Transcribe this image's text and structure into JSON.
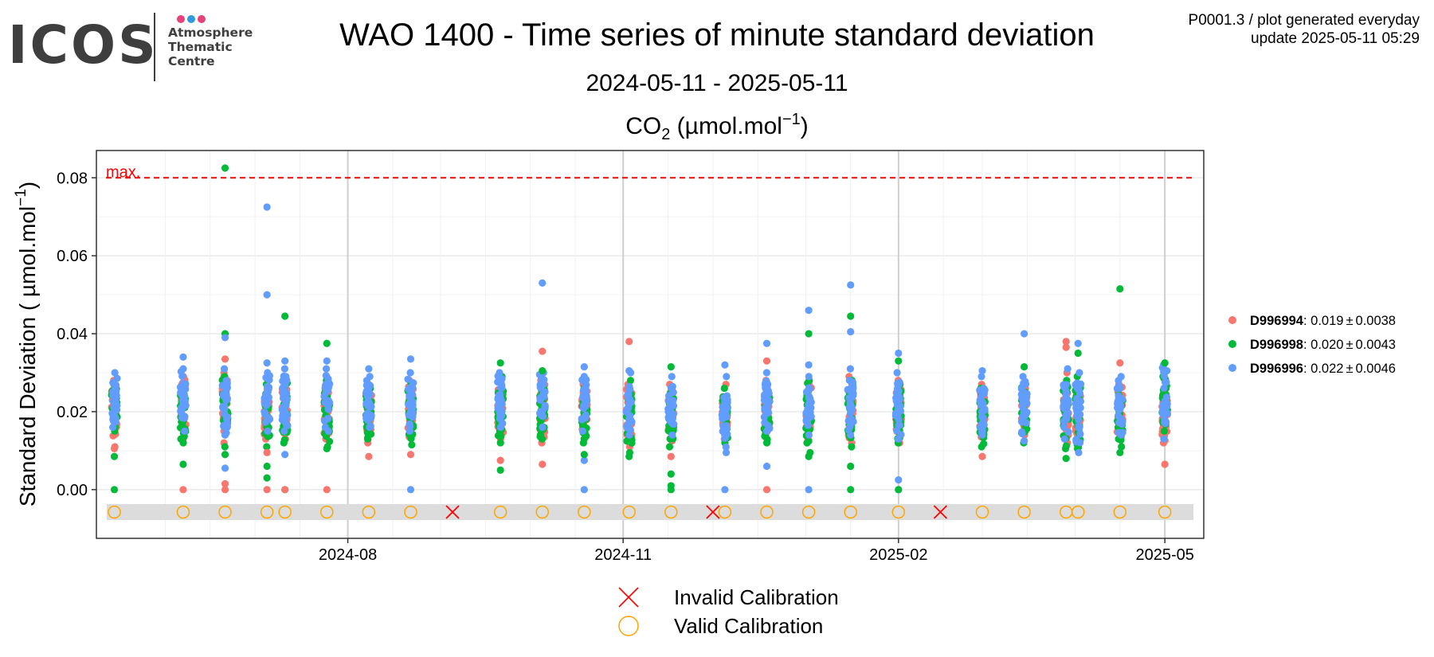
{
  "logo": {
    "word": "ICOS",
    "lines": [
      "Atmosphere",
      "Thematic",
      "Centre"
    ],
    "dot_colors": [
      "#e8417a",
      "#2d9be0",
      "#e8417a"
    ]
  },
  "header": {
    "title": "WAO 1400 - Time series of minute standard deviation",
    "subtitle": "2024-05-11 - 2025-05-11",
    "meta_line1": "P0001.3 / plot generated everyday",
    "meta_line2": "update  2025-05-11 05:29"
  },
  "colors": {
    "D996994": "#f8766d",
    "D996998": "#00ba38",
    "D996996": "#619cff",
    "max_line": "#ff0000",
    "calibration_band": "#dcdcdc",
    "valid_calibration": "#ffa500",
    "invalid_calibration": "#ff0000"
  },
  "chart_data": {
    "type": "scatter",
    "title": "CO2 (µmol.mol-1)",
    "ylabel": "Standard Deviation ( µmol.mol-1)",
    "xlim": [
      "2024-05-09",
      "2025-05-14"
    ],
    "ylim": [
      -0.0125,
      0.087
    ],
    "yticks": [
      0.0,
      0.02,
      0.04,
      0.06,
      0.08
    ],
    "ytick_labels": [
      "0.00",
      "0.02",
      "0.04",
      "0.06",
      "0.08"
    ],
    "xticks": [
      "2024-08-01",
      "2024-11-01",
      "2025-02-01",
      "2025-05-01"
    ],
    "xtick_labels": [
      "2024-08",
      "2024-11",
      "2025-02",
      "2025-05"
    ],
    "grid": true,
    "legend_position": "right",
    "max_line": {
      "value": 0.08,
      "label": "max."
    },
    "series": [
      {
        "name": "D996994",
        "legend_value": ": 0.019",
        "legend_sd": "0.0038"
      },
      {
        "name": "D996998",
        "legend_value": ": 0.020",
        "legend_sd": "0.0043"
      },
      {
        "name": "D996996",
        "legend_value": ": 0.022",
        "legend_sd": "0.0046"
      }
    ],
    "measurements": [
      {
        "date": "2024-05-15",
        "D996994": [
          0.011,
          0.028
        ],
        "D996998": [
          0.015,
          0.027
        ],
        "D996996": [
          0.016,
          0.03
        ],
        "low_points": {
          "D996998": [
            0.0,
            0.0085
          ],
          "D996994": [
            0.0105
          ]
        },
        "high_points": {}
      },
      {
        "date": "2024-06-07",
        "D996994": [
          0.0135,
          0.029
        ],
        "D996998": [
          0.012,
          0.027
        ],
        "D996996": [
          0.015,
          0.031
        ],
        "low_points": {
          "D996994": [
            0.0
          ],
          "D996998": [
            0.0065
          ]
        },
        "high_points": {
          "D996996": [
            0.034
          ]
        }
      },
      {
        "date": "2024-06-21",
        "D996994": [
          0.012,
          0.03
        ],
        "D996998": [
          0.011,
          0.029
        ],
        "D996996": [
          0.014,
          0.031
        ],
        "low_points": {
          "D996994": [
            0.0,
            0.0015
          ],
          "D996998": [
            0.009
          ],
          "D996996": [
            0.0055
          ]
        },
        "high_points": {
          "D996998": [
            0.0825,
            0.04
          ],
          "D996994": [
            0.0335
          ],
          "D996996": [
            0.039
          ]
        }
      },
      {
        "date": "2024-07-05",
        "D996994": [
          0.013,
          0.028
        ],
        "D996998": [
          0.011,
          0.027
        ],
        "D996996": [
          0.015,
          0.03
        ],
        "low_points": {
          "D996994": [
            0.0,
            0.0095
          ],
          "D996998": [
            0.003,
            0.006
          ]
        },
        "high_points": {
          "D996996": [
            0.0725,
            0.05,
            0.0325
          ]
        }
      },
      {
        "date": "2024-07-11",
        "D996994": [
          0.013,
          0.029
        ],
        "D996998": [
          0.012,
          0.028
        ],
        "D996996": [
          0.015,
          0.031
        ],
        "low_points": {
          "D996998": [
            0.0
          ],
          "D996994": [
            0.0
          ],
          "D996996": [
            0.009
          ]
        },
        "high_points": {
          "D996998": [
            0.0445
          ],
          "D996996": [
            0.033
          ]
        }
      },
      {
        "date": "2024-07-25",
        "D996994": [
          0.013,
          0.029
        ],
        "D996998": [
          0.011,
          0.028
        ],
        "D996996": [
          0.015,
          0.031
        ],
        "low_points": {
          "D996994": [
            0.0
          ],
          "D996998": [
            0.0105
          ]
        },
        "high_points": {
          "D996998": [
            0.0375
          ],
          "D996996": [
            0.033
          ]
        }
      },
      {
        "date": "2024-08-08",
        "D996994": [
          0.012,
          0.027
        ],
        "D996998": [
          0.013,
          0.026
        ],
        "D996996": [
          0.016,
          0.029
        ],
        "low_points": {
          "D996994": [
            0.0085
          ]
        },
        "high_points": {
          "D996996": [
            0.031
          ]
        }
      },
      {
        "date": "2024-08-22",
        "D996994": [
          0.0135,
          0.028
        ],
        "D996998": [
          0.0115,
          0.027
        ],
        "D996996": [
          0.015,
          0.03
        ],
        "low_points": {
          "D996994": [
            0.009
          ],
          "D996996": [
            0.0
          ]
        },
        "high_points": {
          "D996996": [
            0.0335
          ]
        }
      },
      {
        "date": "2024-09-21",
        "D996994": [
          0.013,
          0.028
        ],
        "D996998": [
          0.012,
          0.029
        ],
        "D996996": [
          0.016,
          0.03
        ],
        "low_points": {
          "D996994": [
            0.0075
          ],
          "D996998": [
            0.005
          ]
        },
        "high_points": {
          "D996998": [
            0.0325
          ]
        }
      },
      {
        "date": "2024-10-05",
        "D996994": [
          0.012,
          0.028
        ],
        "D996998": [
          0.013,
          0.027
        ],
        "D996996": [
          0.016,
          0.03
        ],
        "low_points": {
          "D996994": [
            0.0065
          ]
        },
        "high_points": {
          "D996996": [
            0.053
          ],
          "D996994": [
            0.0355
          ],
          "D996998": [
            0.0305
          ]
        }
      },
      {
        "date": "2024-10-19",
        "D996994": [
          0.0135,
          0.027
        ],
        "D996998": [
          0.012,
          0.026
        ],
        "D996996": [
          0.015,
          0.029
        ],
        "low_points": {
          "D996996": [
            0.0,
            0.0075
          ],
          "D996998": [
            0.009
          ]
        },
        "high_points": {
          "D996996": [
            0.0315
          ]
        }
      },
      {
        "date": "2024-11-03",
        "D996994": [
          0.011,
          0.027
        ],
        "D996998": [
          0.0095,
          0.028
        ],
        "D996996": [
          0.014,
          0.03
        ],
        "low_points": {
          "D996998": [
            0.0085
          ]
        },
        "high_points": {
          "D996994": [
            0.038
          ],
          "D996996": [
            0.0305
          ]
        }
      },
      {
        "date": "2024-11-17",
        "D996994": [
          0.0125,
          0.027
        ],
        "D996998": [
          0.011,
          0.026
        ],
        "D996996": [
          0.014,
          0.029
        ],
        "low_points": {
          "D996998": [
            0.0,
            0.001,
            0.004
          ],
          "D996994": [
            0.0085
          ]
        },
        "high_points": {
          "D996998": [
            0.0315
          ]
        }
      },
      {
        "date": "2024-12-05",
        "D996994": [
          0.013,
          0.027
        ],
        "D996998": [
          0.012,
          0.026
        ],
        "D996996": [
          0.0095,
          0.029
        ],
        "low_points": {
          "D996996": [
            0.0
          ]
        },
        "high_points": {
          "D996996": [
            0.032
          ]
        }
      },
      {
        "date": "2024-12-19",
        "D996994": [
          0.0135,
          0.028
        ],
        "D996998": [
          0.012,
          0.027
        ],
        "D996996": [
          0.015,
          0.03
        ],
        "low_points": {
          "D996994": [
            0.0
          ],
          "D996996": [
            0.006
          ]
        },
        "high_points": {
          "D996996": [
            0.0375
          ],
          "D996994": [
            0.033
          ]
        }
      },
      {
        "date": "2025-01-02",
        "D996994": [
          0.013,
          0.027
        ],
        "D996998": [
          0.0095,
          0.028
        ],
        "D996996": [
          0.014,
          0.029
        ],
        "low_points": {
          "D996998": [
            0.0085
          ],
          "D996996": [
            0.0
          ]
        },
        "high_points": {
          "D996996": [
            0.046,
            0.032
          ],
          "D996998": [
            0.04
          ]
        }
      },
      {
        "date": "2025-01-16",
        "D996994": [
          0.012,
          0.029
        ],
        "D996998": [
          0.011,
          0.028
        ],
        "D996996": [
          0.014,
          0.031
        ],
        "low_points": {
          "D996998": [
            0.0,
            0.006
          ]
        },
        "high_points": {
          "D996996": [
            0.0525,
            0.0405
          ],
          "D996998": [
            0.0445
          ]
        }
      },
      {
        "date": "2025-02-01",
        "D996994": [
          0.012,
          0.028
        ],
        "D996998": [
          0.012,
          0.027
        ],
        "D996996": [
          0.013,
          0.03
        ],
        "low_points": {
          "D996996": [
            0.0,
            0.0025
          ],
          "D996998": [
            0.0
          ]
        },
        "high_points": {
          "D996996": [
            0.035
          ],
          "D996998": [
            0.033
          ]
        }
      },
      {
        "date": "2025-03-01",
        "D996994": [
          0.0135,
          0.027
        ],
        "D996998": [
          0.011,
          0.026
        ],
        "D996996": [
          0.014,
          0.029
        ],
        "low_points": {
          "D996994": [
            0.0085
          ]
        },
        "high_points": {
          "D996996": [
            0.0305
          ]
        }
      },
      {
        "date": "2025-03-15",
        "D996994": [
          0.014,
          0.026
        ],
        "D996998": [
          0.012,
          0.027
        ],
        "D996996": [
          0.0125,
          0.029
        ],
        "low_points": {},
        "high_points": {
          "D996996": [
            0.04
          ],
          "D996998": [
            0.0315
          ]
        }
      },
      {
        "date": "2025-03-29",
        "D996994": [
          0.012,
          0.03
        ],
        "D996998": [
          0.0105,
          0.028
        ],
        "D996996": [
          0.013,
          0.031
        ],
        "low_points": {
          "D996998": [
            0.008
          ]
        },
        "high_points": {
          "D996994": [
            0.038,
            0.0365
          ]
        }
      },
      {
        "date": "2025-04-02",
        "D996994": [
          0.013,
          0.027
        ],
        "D996998": [
          0.0105,
          0.029
        ],
        "D996996": [
          0.0095,
          0.03
        ],
        "low_points": {},
        "high_points": {
          "D996996": [
            0.0375
          ],
          "D996998": [
            0.035
          ]
        }
      },
      {
        "date": "2025-04-16",
        "D996994": [
          0.0135,
          0.027
        ],
        "D996998": [
          0.011,
          0.026
        ],
        "D996996": [
          0.014,
          0.029
        ],
        "low_points": {
          "D996998": [
            0.0095
          ]
        },
        "high_points": {
          "D996998": [
            0.0515
          ],
          "D996994": [
            0.0325
          ]
        }
      },
      {
        "date": "2025-05-01",
        "D996994": [
          0.012,
          0.029
        ],
        "D996998": [
          0.015,
          0.031
        ],
        "D996996": [
          0.013,
          0.032
        ],
        "low_points": {
          "D996994": [
            0.0065
          ]
        },
        "high_points": {
          "D996998": [
            0.0325
          ]
        }
      }
    ],
    "calibrations": [
      {
        "date": "2024-05-15",
        "status": "valid"
      },
      {
        "date": "2024-06-07",
        "status": "valid"
      },
      {
        "date": "2024-06-21",
        "status": "valid"
      },
      {
        "date": "2024-07-05",
        "status": "valid"
      },
      {
        "date": "2024-07-11",
        "status": "valid"
      },
      {
        "date": "2024-07-25",
        "status": "valid"
      },
      {
        "date": "2024-08-08",
        "status": "valid"
      },
      {
        "date": "2024-08-22",
        "status": "valid"
      },
      {
        "date": "2024-09-05",
        "status": "invalid"
      },
      {
        "date": "2024-09-21",
        "status": "valid"
      },
      {
        "date": "2024-10-05",
        "status": "valid"
      },
      {
        "date": "2024-10-19",
        "status": "valid"
      },
      {
        "date": "2024-11-03",
        "status": "valid"
      },
      {
        "date": "2024-11-17",
        "status": "valid"
      },
      {
        "date": "2024-12-01",
        "status": "invalid"
      },
      {
        "date": "2024-12-05",
        "status": "valid"
      },
      {
        "date": "2024-12-19",
        "status": "valid"
      },
      {
        "date": "2025-01-02",
        "status": "valid"
      },
      {
        "date": "2025-01-16",
        "status": "valid"
      },
      {
        "date": "2025-02-01",
        "status": "valid"
      },
      {
        "date": "2025-02-15",
        "status": "invalid"
      },
      {
        "date": "2025-03-01",
        "status": "valid"
      },
      {
        "date": "2025-03-15",
        "status": "valid"
      },
      {
        "date": "2025-03-29",
        "status": "valid"
      },
      {
        "date": "2025-04-02",
        "status": "valid"
      },
      {
        "date": "2025-04-16",
        "status": "valid"
      },
      {
        "date": "2025-05-01",
        "status": "valid"
      }
    ],
    "calibration_legend": [
      {
        "status": "invalid",
        "label": "Invalid Calibration"
      },
      {
        "status": "valid",
        "label": "Valid Calibration"
      }
    ]
  }
}
